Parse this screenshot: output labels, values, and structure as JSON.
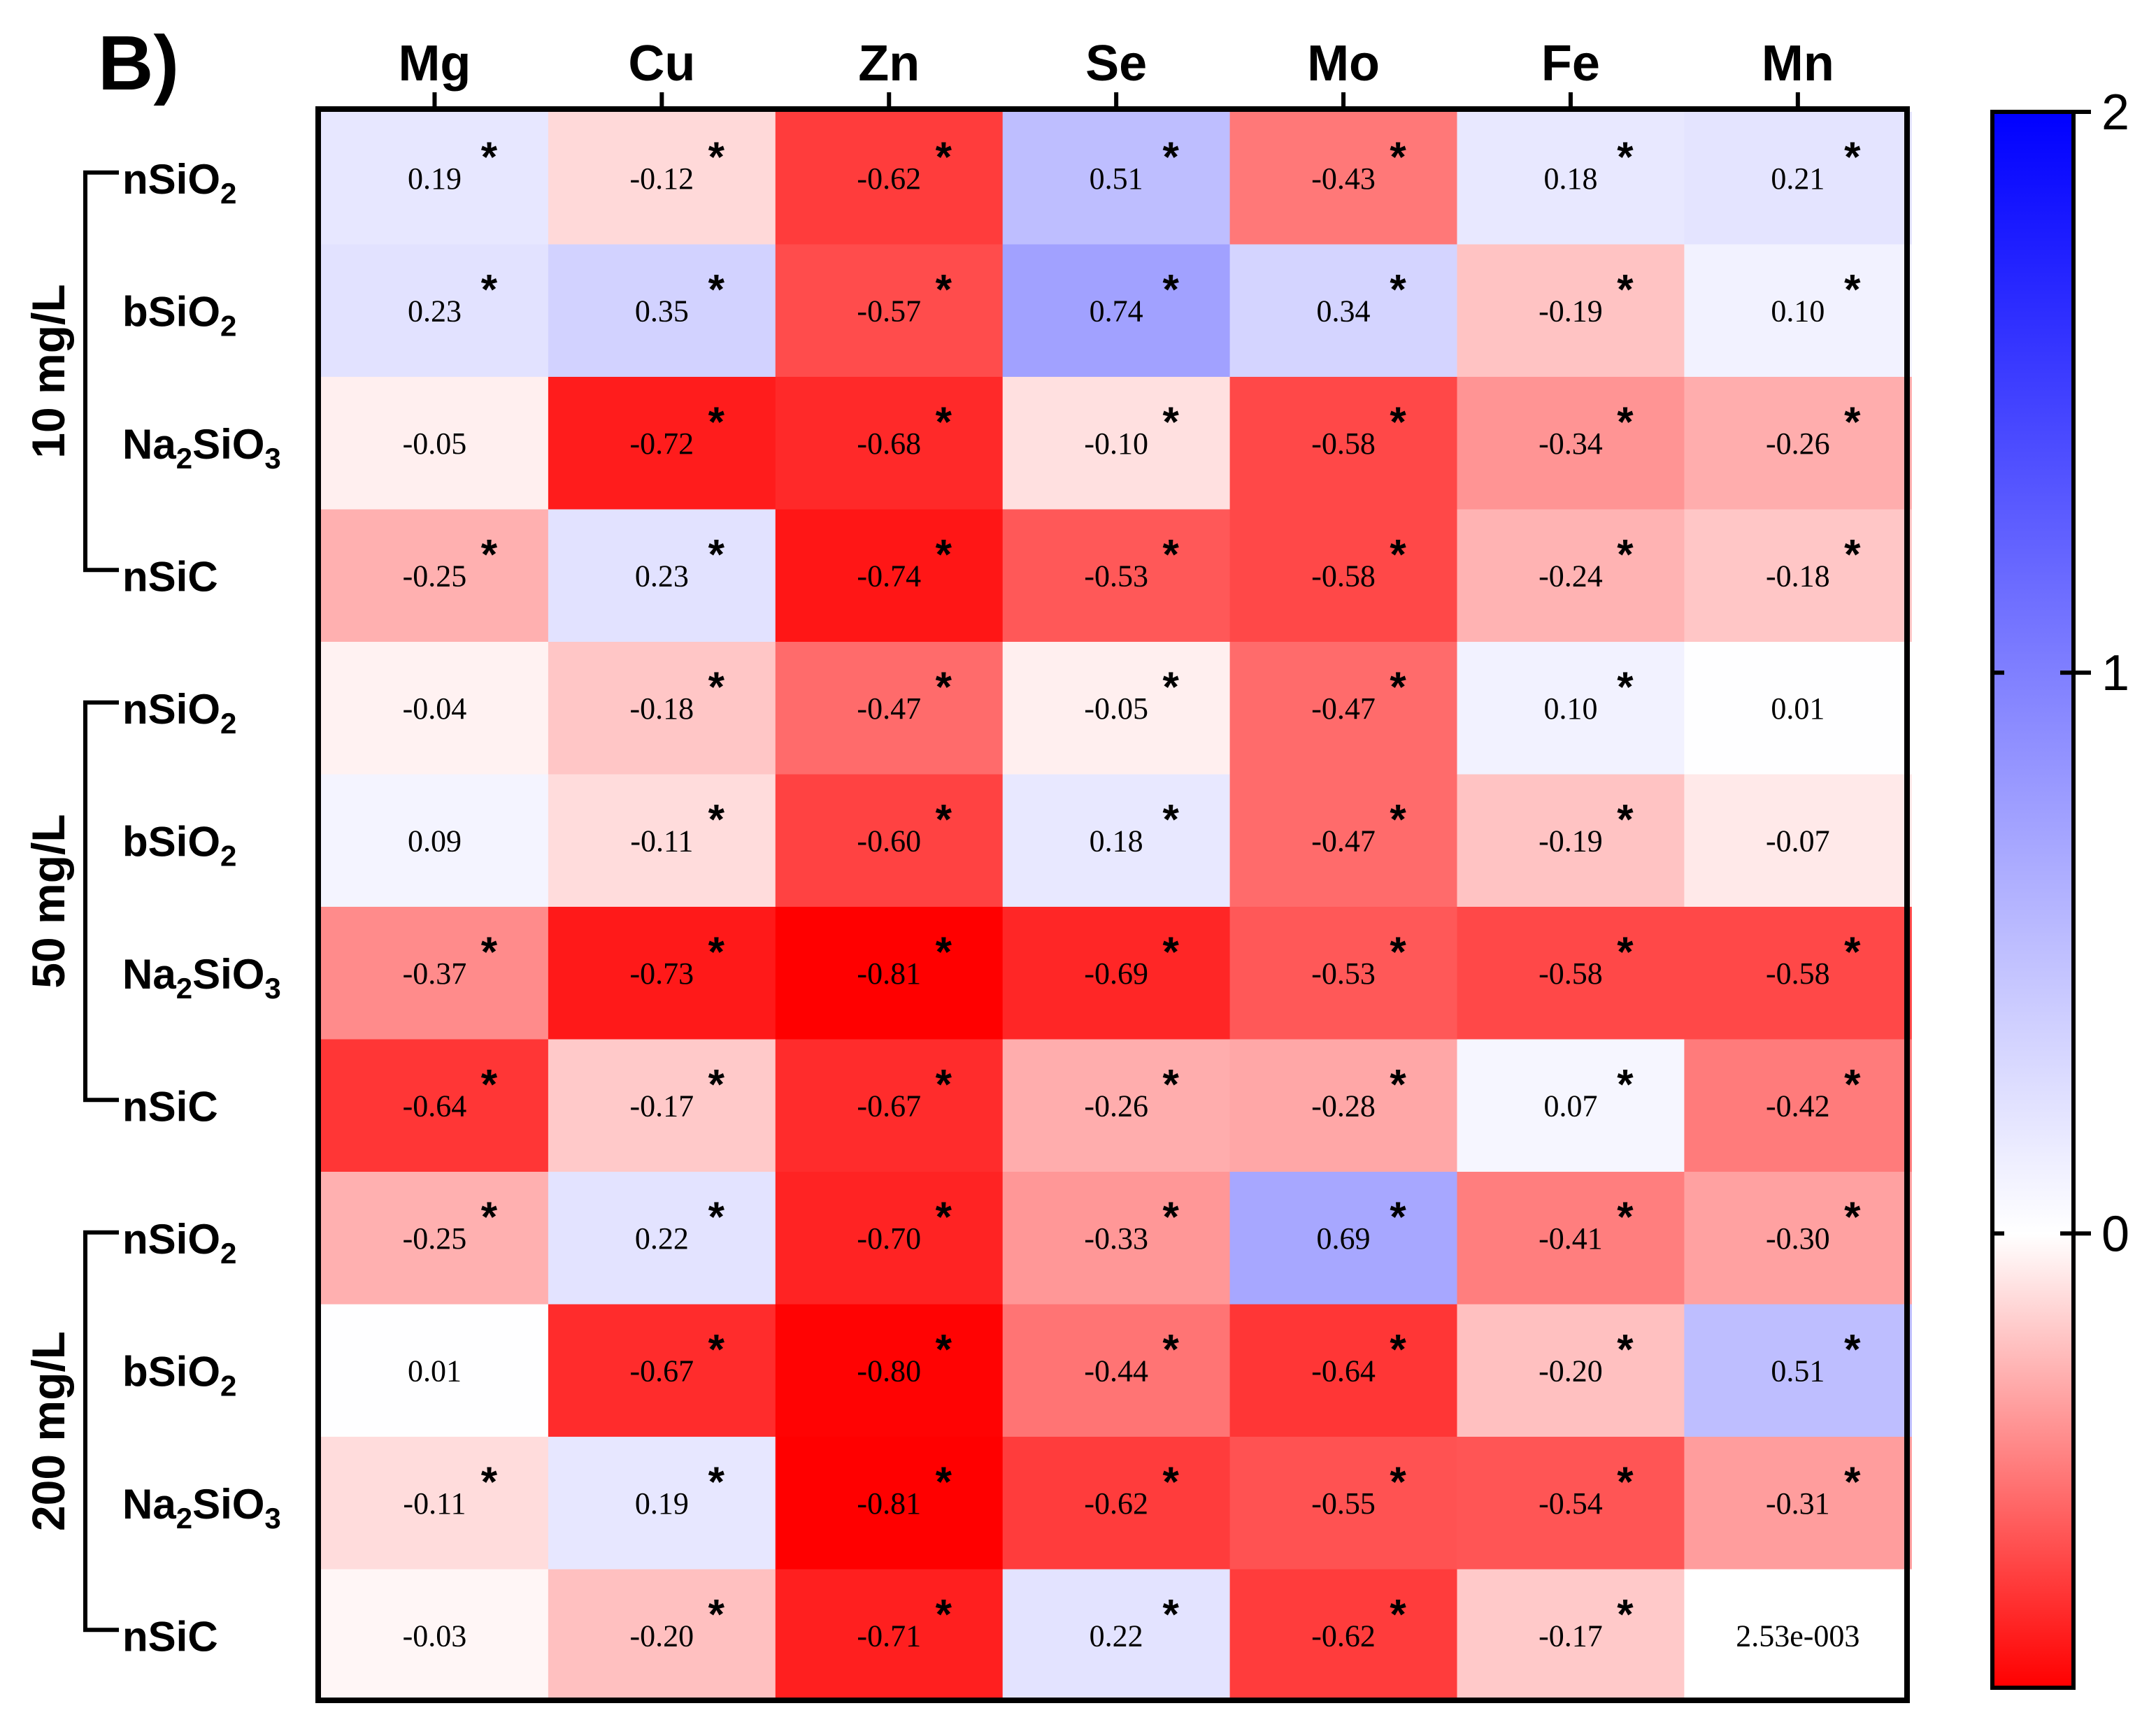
{
  "chart_data": {
    "type": "heatmap",
    "panel_label": "B)",
    "columns": [
      "Mg",
      "Cu",
      "Zn",
      "Se",
      "Mo",
      "Fe",
      "Mn"
    ],
    "groups": [
      {
        "label": "10 mg/L",
        "rows": [
          {
            "name": "nSiO",
            "sub": "2",
            "name_tail": ""
          },
          {
            "name": "bSiO",
            "sub": "2",
            "name_tail": ""
          },
          {
            "name": "Na",
            "sub": "2",
            "name_tail": "SiO",
            "sub2": "3"
          },
          {
            "name": "nSiC",
            "sub": "",
            "name_tail": ""
          }
        ]
      },
      {
        "label": "50 mg/L",
        "rows": [
          {
            "name": "nSiO",
            "sub": "2",
            "name_tail": ""
          },
          {
            "name": "bSiO",
            "sub": "2",
            "name_tail": ""
          },
          {
            "name": "Na",
            "sub": "2",
            "name_tail": "SiO",
            "sub2": "3"
          },
          {
            "name": "nSiC",
            "sub": "",
            "name_tail": ""
          }
        ]
      },
      {
        "label": "200 mg/L",
        "rows": [
          {
            "name": "nSiO",
            "sub": "2",
            "name_tail": ""
          },
          {
            "name": "bSiO",
            "sub": "2",
            "name_tail": ""
          },
          {
            "name": "Na",
            "sub": "2",
            "name_tail": "SiO",
            "sub2": "3"
          },
          {
            "name": "nSiC",
            "sub": "",
            "name_tail": ""
          }
        ]
      }
    ],
    "values": [
      [
        0.19,
        -0.12,
        -0.62,
        0.51,
        -0.43,
        0.18,
        0.21
      ],
      [
        0.23,
        0.35,
        -0.57,
        0.74,
        0.34,
        -0.19,
        0.1
      ],
      [
        -0.05,
        -0.72,
        -0.68,
        -0.1,
        -0.58,
        -0.34,
        -0.26
      ],
      [
        -0.25,
        0.23,
        -0.74,
        -0.53,
        -0.58,
        -0.24,
        -0.18
      ],
      [
        -0.04,
        -0.18,
        -0.47,
        -0.05,
        -0.47,
        0.1,
        0.01
      ],
      [
        0.09,
        -0.11,
        -0.6,
        0.18,
        -0.47,
        -0.19,
        -0.07
      ],
      [
        -0.37,
        -0.73,
        -0.81,
        -0.69,
        -0.53,
        -0.58,
        -0.58
      ],
      [
        -0.64,
        -0.17,
        -0.67,
        -0.26,
        -0.28,
        0.07,
        -0.42
      ],
      [
        -0.25,
        0.22,
        -0.7,
        -0.33,
        0.69,
        -0.41,
        -0.3
      ],
      [
        0.01,
        -0.67,
        -0.8,
        -0.44,
        -0.64,
        -0.2,
        0.51
      ],
      [
        -0.11,
        0.19,
        -0.81,
        -0.62,
        -0.55,
        -0.54,
        -0.31
      ],
      [
        -0.03,
        -0.2,
        -0.71,
        0.22,
        -0.62,
        -0.17,
        0.00253
      ]
    ],
    "labels": [
      [
        "0.19",
        "-0.12",
        "-0.62",
        "0.51",
        "-0.43",
        "0.18",
        "0.21"
      ],
      [
        "0.23",
        "0.35",
        "-0.57",
        "0.74",
        "0.34",
        "-0.19",
        "0.10"
      ],
      [
        "-0.05",
        "-0.72",
        "-0.68",
        "-0.10",
        "-0.58",
        "-0.34",
        "-0.26"
      ],
      [
        "-0.25",
        "0.23",
        "-0.74",
        "-0.53",
        "-0.58",
        "-0.24",
        "-0.18"
      ],
      [
        "-0.04",
        "-0.18",
        "-0.47",
        "-0.05",
        "-0.47",
        "0.10",
        "0.01"
      ],
      [
        "0.09",
        "-0.11",
        "-0.60",
        "0.18",
        "-0.47",
        "-0.19",
        "-0.07"
      ],
      [
        "-0.37",
        "-0.73",
        "-0.81",
        "-0.69",
        "-0.53",
        "-0.58",
        "-0.58"
      ],
      [
        "-0.64",
        "-0.17",
        "-0.67",
        "-0.26",
        "-0.28",
        "0.07",
        "-0.42"
      ],
      [
        "-0.25",
        "0.22",
        "-0.70",
        "-0.33",
        "0.69",
        "-0.41",
        "-0.30"
      ],
      [
        "0.01",
        "-0.67",
        "-0.80",
        "-0.44",
        "-0.64",
        "-0.20",
        "0.51"
      ],
      [
        "-0.11",
        "0.19",
        "-0.81",
        "-0.62",
        "-0.55",
        "-0.54",
        "-0.31"
      ],
      [
        "-0.03",
        "-0.20",
        "-0.71",
        "0.22",
        "-0.62",
        "-0.17",
        "2.53e-003"
      ]
    ],
    "significant": [
      [
        1,
        1,
        1,
        1,
        1,
        1,
        1
      ],
      [
        1,
        1,
        1,
        1,
        1,
        1,
        1
      ],
      [
        0,
        1,
        1,
        1,
        1,
        1,
        1
      ],
      [
        1,
        1,
        1,
        1,
        1,
        1,
        1
      ],
      [
        0,
        1,
        1,
        1,
        1,
        1,
        0
      ],
      [
        0,
        1,
        1,
        1,
        1,
        1,
        0
      ],
      [
        1,
        1,
        1,
        1,
        1,
        1,
        1
      ],
      [
        1,
        1,
        1,
        1,
        1,
        1,
        1
      ],
      [
        1,
        1,
        1,
        1,
        1,
        1,
        1
      ],
      [
        0,
        1,
        1,
        1,
        1,
        1,
        1
      ],
      [
        1,
        1,
        1,
        1,
        1,
        1,
        1
      ],
      [
        0,
        1,
        1,
        1,
        1,
        1,
        0
      ]
    ],
    "significance_marker": "*",
    "colorbar": {
      "ticks": [
        0,
        1,
        2
      ],
      "tick_labels": [
        "0",
        "1",
        "2"
      ],
      "range": [
        -0.81,
        2
      ],
      "colors": {
        "min": "#ff0000",
        "zero": "#ffffff",
        "max": "#0000ff"
      }
    }
  }
}
